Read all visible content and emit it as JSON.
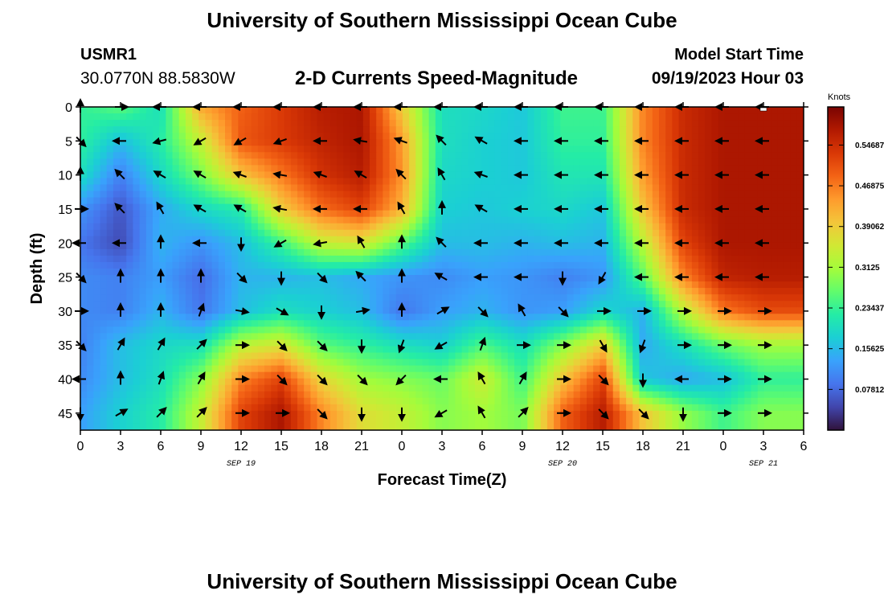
{
  "header": {
    "title": "University of Southern Mississippi Ocean Cube",
    "station_id": "USMR1",
    "station_coords": "30.0770N  88.5830W",
    "chart_title": "2-D Currents Speed-Magnitude",
    "start_label": "Model Start Time",
    "start_time": "09/19/2023 Hour 03"
  },
  "footer": {
    "title": "University of Southern Mississippi Ocean Cube"
  },
  "chart_data": {
    "type": "heatmap",
    "title": "2-D Currents Speed-Magnitude",
    "xlabel": "Forecast Time(Z)",
    "ylabel": "Depth (ft)",
    "colorbar_label": "Knots",
    "x_tick_labels": [
      "0",
      "3",
      "6",
      "9",
      "12",
      "15",
      "18",
      "21",
      "0",
      "3",
      "6",
      "9",
      "12",
      "15",
      "18",
      "21",
      "0",
      "3",
      "6"
    ],
    "x_dates": [
      {
        "label": "SEP 19",
        "at_index": 4
      },
      {
        "label": "SEP 20",
        "at_index": 12
      },
      {
        "label": "SEP 21",
        "at_index": 17
      }
    ],
    "y_tick_labels": [
      "0",
      "5",
      "10",
      "15",
      "20",
      "25",
      "30",
      "35",
      "40",
      "45"
    ],
    "y_ticks": [
      0,
      5,
      10,
      15,
      20,
      25,
      30,
      35,
      40,
      45
    ],
    "ylim": [
      0,
      47.5
    ],
    "y_inverted": true,
    "colorbar_ticks": [
      "0.07812",
      "0.15625",
      "0.23437",
      "0.3125",
      "0.39062",
      "0.46875",
      "0.54687"
    ],
    "color_range": [
      0.0,
      0.62
    ],
    "colormap": [
      "#30123b",
      "#4145ab",
      "#4675ed",
      "#39a2fc",
      "#1bcfd4",
      "#24eca6",
      "#61fc6c",
      "#a4fc3b",
      "#d1e834",
      "#f3c63a",
      "#fe9b2d",
      "#f36315",
      "#d93806",
      "#b11901",
      "#7a0402"
    ],
    "cell_times_h": [
      0,
      3,
      6,
      9,
      12,
      15,
      18,
      21,
      24,
      27,
      30,
      33,
      36,
      39,
      42,
      45,
      48,
      51
    ],
    "cell_depths_ft": [
      0,
      5,
      10,
      15,
      20,
      25,
      30,
      35,
      40,
      45
    ],
    "speed_knots": [
      [
        0.23,
        0.26,
        0.2,
        0.43,
        0.49,
        0.53,
        0.57,
        0.58,
        0.39,
        0.2,
        0.19,
        0.17,
        0.24,
        0.24,
        0.46,
        0.55,
        0.58,
        0.58
      ],
      [
        0.23,
        0.16,
        0.22,
        0.34,
        0.5,
        0.53,
        0.56,
        0.58,
        0.44,
        0.2,
        0.18,
        0.17,
        0.23,
        0.23,
        0.46,
        0.55,
        0.58,
        0.58
      ],
      [
        0.2,
        0.1,
        0.19,
        0.28,
        0.4,
        0.47,
        0.54,
        0.57,
        0.45,
        0.19,
        0.18,
        0.17,
        0.21,
        0.21,
        0.44,
        0.55,
        0.58,
        0.58
      ],
      [
        0.12,
        0.06,
        0.14,
        0.19,
        0.22,
        0.39,
        0.48,
        0.52,
        0.42,
        0.18,
        0.17,
        0.18,
        0.19,
        0.17,
        0.4,
        0.55,
        0.58,
        0.58
      ],
      [
        0.09,
        0.05,
        0.15,
        0.12,
        0.16,
        0.24,
        0.34,
        0.36,
        0.26,
        0.16,
        0.16,
        0.15,
        0.16,
        0.15,
        0.33,
        0.52,
        0.58,
        0.58
      ],
      [
        0.11,
        0.1,
        0.13,
        0.08,
        0.15,
        0.15,
        0.16,
        0.14,
        0.12,
        0.11,
        0.13,
        0.12,
        0.1,
        0.12,
        0.26,
        0.46,
        0.56,
        0.57
      ],
      [
        0.11,
        0.1,
        0.15,
        0.09,
        0.16,
        0.2,
        0.18,
        0.16,
        0.09,
        0.13,
        0.15,
        0.12,
        0.13,
        0.19,
        0.15,
        0.33,
        0.47,
        0.51
      ],
      [
        0.1,
        0.16,
        0.19,
        0.2,
        0.33,
        0.36,
        0.26,
        0.23,
        0.2,
        0.18,
        0.25,
        0.2,
        0.29,
        0.39,
        0.14,
        0.2,
        0.27,
        0.31
      ],
      [
        0.11,
        0.16,
        0.2,
        0.29,
        0.46,
        0.52,
        0.38,
        0.31,
        0.29,
        0.27,
        0.35,
        0.24,
        0.4,
        0.52,
        0.17,
        0.14,
        0.16,
        0.23
      ],
      [
        0.13,
        0.18,
        0.22,
        0.34,
        0.52,
        0.58,
        0.46,
        0.37,
        0.34,
        0.29,
        0.31,
        0.28,
        0.49,
        0.57,
        0.4,
        0.3,
        0.24,
        0.29
      ]
    ],
    "direction_deg": [
      [
        0,
        90,
        270,
        270,
        270,
        270,
        270,
        270,
        270,
        270,
        270,
        270,
        270,
        270,
        270,
        270,
        270,
        270
      ],
      [
        135,
        270,
        255,
        240,
        240,
        250,
        270,
        280,
        290,
        315,
        300,
        270,
        270,
        270,
        270,
        270,
        270,
        270
      ],
      [
        0,
        315,
        300,
        300,
        290,
        280,
        290,
        300,
        315,
        330,
        290,
        270,
        270,
        270,
        270,
        270,
        270,
        270
      ],
      [
        90,
        315,
        330,
        300,
        300,
        280,
        270,
        270,
        330,
        0,
        300,
        270,
        270,
        270,
        270,
        270,
        270,
        270
      ],
      [
        270,
        270,
        0,
        270,
        180,
        240,
        260,
        330,
        0,
        315,
        270,
        270,
        270,
        270,
        270,
        270,
        270,
        270
      ],
      [
        135,
        0,
        0,
        0,
        135,
        180,
        135,
        315,
        0,
        300,
        270,
        270,
        180,
        210,
        270,
        270,
        270,
        270
      ],
      [
        90,
        0,
        0,
        20,
        100,
        120,
        180,
        80,
        0,
        60,
        135,
        330,
        135,
        90,
        90,
        90,
        90,
        90
      ],
      [
        135,
        30,
        30,
        45,
        90,
        135,
        135,
        180,
        200,
        240,
        20,
        90,
        90,
        150,
        200,
        90,
        90,
        90
      ],
      [
        270,
        0,
        20,
        30,
        90,
        135,
        135,
        135,
        225,
        270,
        330,
        30,
        90,
        135,
        180,
        270,
        90,
        90
      ],
      [
        180,
        60,
        45,
        45,
        90,
        90,
        135,
        180,
        180,
        240,
        330,
        45,
        90,
        135,
        135,
        180,
        90,
        90
      ]
    ],
    "marker_at_top": {
      "time_h": 51,
      "depth_ft": 0
    }
  }
}
